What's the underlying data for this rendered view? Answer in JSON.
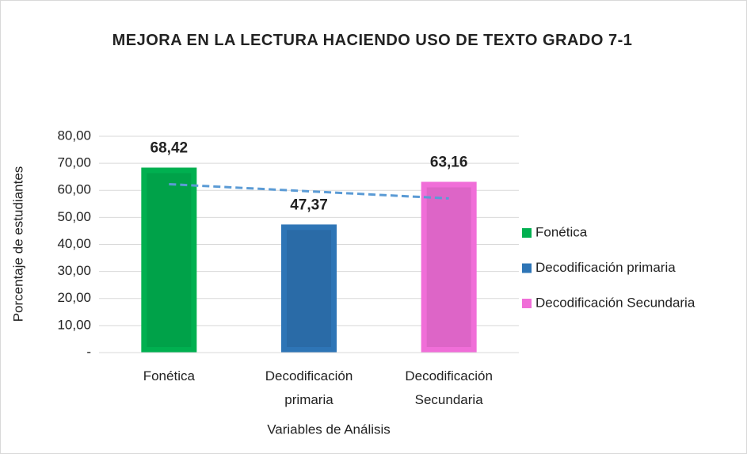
{
  "chart_data": {
    "type": "bar",
    "title": "MEJORA EN LA LECTURA HACIENDO USO DE TEXTO GRADO 7-1",
    "x_label": "Variables de Análisis",
    "y_label": "Porcentaje de estudiantes",
    "categories": [
      "Fonética",
      "Decodificación primaria",
      "Decodificación Secundaria"
    ],
    "values": [
      68.42,
      47.37,
      63.16
    ],
    "value_labels": [
      "68,42",
      "47,37",
      "63,16"
    ],
    "colors": [
      "#00b050",
      "#2e75b6",
      "#f06ed8"
    ],
    "ylim": [
      0,
      80
    ],
    "yticks": [
      {
        "value": 0,
        "label": "-"
      },
      {
        "value": 10,
        "label": "10,00"
      },
      {
        "value": 20,
        "label": "20,00"
      },
      {
        "value": 30,
        "label": "30,00"
      },
      {
        "value": 40,
        "label": "40,00"
      },
      {
        "value": 50,
        "label": "50,00"
      },
      {
        "value": 60,
        "label": "60,00"
      },
      {
        "value": 70,
        "label": "70,00"
      },
      {
        "value": 80,
        "label": "80,00"
      }
    ],
    "grid": true,
    "legend": "right",
    "trendline": {
      "type": "linear",
      "color": "#5b9bd5"
    }
  }
}
